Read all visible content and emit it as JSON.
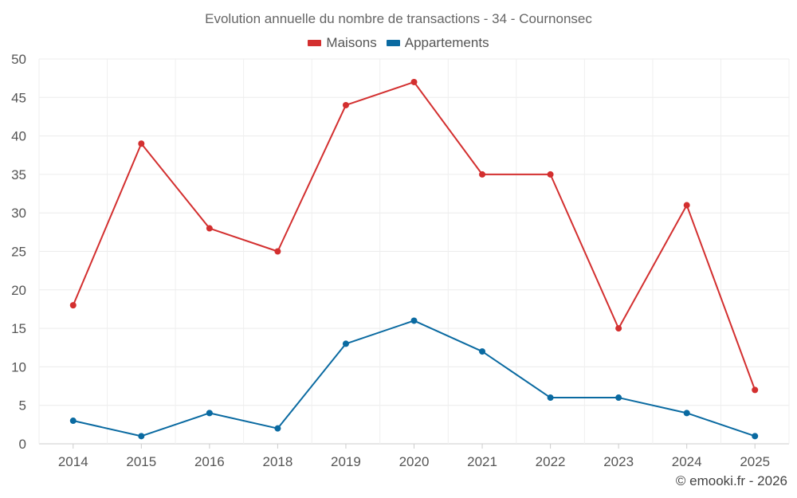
{
  "chart_data": {
    "type": "line",
    "title": "Evolution annuelle du nombre de transactions - 34 - Cournonsec",
    "categories": [
      "2014",
      "2015",
      "2016",
      "2018",
      "2019",
      "2020",
      "2021",
      "2022",
      "2023",
      "2024",
      "2025"
    ],
    "ylim": [
      0,
      50
    ],
    "yticks": [
      0,
      5,
      10,
      15,
      20,
      25,
      30,
      35,
      40,
      45,
      50
    ],
    "grid": true,
    "legend_position": "top-center",
    "series": [
      {
        "name": "Maisons",
        "color": "#d32f2f",
        "values": [
          18,
          39,
          28,
          25,
          44,
          47,
          35,
          35,
          15,
          31,
          7
        ]
      },
      {
        "name": "Appartements",
        "color": "#0a6aa1",
        "values": [
          3,
          1,
          4,
          2,
          13,
          16,
          12,
          6,
          6,
          4,
          1
        ]
      }
    ],
    "xlabel": "",
    "ylabel": ""
  },
  "legend": {
    "items": [
      {
        "label": "Maisons",
        "color": "#d32f2f"
      },
      {
        "label": "Appartements",
        "color": "#0a6aa1"
      }
    ]
  },
  "credit": "© emooki.fr - 2026"
}
